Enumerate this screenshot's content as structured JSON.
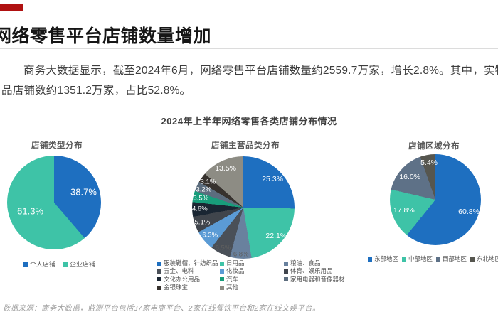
{
  "header": {
    "accent_color": "#b01111",
    "title": "网络零售平台店铺数量增加",
    "intro_line1": "商务大数据显示，截至2024年6月，网络零售平台店铺数量约2559.7万家，增长2.8%。其中，实物",
    "intro_line2": "品店铺数约1351.2万家，占比52.8%。"
  },
  "section": {
    "title": "2024年上半年网络零售各类店铺分布情况"
  },
  "footnote": "数据来源：商务大数据，监测平台包括37家电商平台、2家在线餐饮平台和2家在线文娱平台。",
  "chart_data": [
    {
      "type": "pie",
      "title": "店铺类型分布",
      "labels": [
        "个人店铺",
        "企业店铺"
      ],
      "values": [
        38.7,
        61.3
      ],
      "colors": [
        "#1e6fc0",
        "#3ec3a7"
      ],
      "label_r": [
        0.67,
        0.54
      ],
      "dark_label_indexes": [],
      "legend_position": "bottom"
    },
    {
      "type": "pie",
      "title": "店铺主营品类分布",
      "labels": [
        "服装鞋帽、针纺织品",
        "日用品",
        "粮油、食品",
        "五金、电料",
        "化妆品",
        "体育、娱乐用品",
        "文化办公用品",
        "汽车",
        "家用电器和音像器材",
        "金银珠宝",
        "其他"
      ],
      "values": [
        25.3,
        22.1,
        6.8,
        6.5,
        6.3,
        5.1,
        4.6,
        3.5,
        3.2,
        3.1,
        13.5
      ],
      "colors": [
        "#1e6fc0",
        "#3ec3a7",
        "#69819e",
        "#4a5058",
        "#5b9bd5",
        "#40454c",
        "#1a2633",
        "#189d7b",
        "#5c6d7e",
        "#37322e",
        "#8d8c84"
      ],
      "label_r": [
        0.8,
        0.85,
        0.92,
        0.88,
        0.85,
        0.85,
        0.85,
        0.85,
        0.85,
        0.85,
        0.84
      ],
      "dark_label_indexes": [
        2,
        3
      ],
      "legend_position": "bottom-3-columns"
    },
    {
      "type": "pie",
      "title": "店铺区域分布",
      "labels": [
        "东部地区",
        "中部地区",
        "西部地区",
        "东北地区"
      ],
      "values": [
        60.8,
        17.8,
        16.0,
        5.4
      ],
      "colors": [
        "#1e6fc0",
        "#3ec3a7",
        "#5e7187",
        "#56564f"
      ],
      "label_r": [
        0.78,
        0.73,
        0.75,
        0.83
      ],
      "dark_label_indexes": [],
      "legend_position": "bottom"
    }
  ]
}
